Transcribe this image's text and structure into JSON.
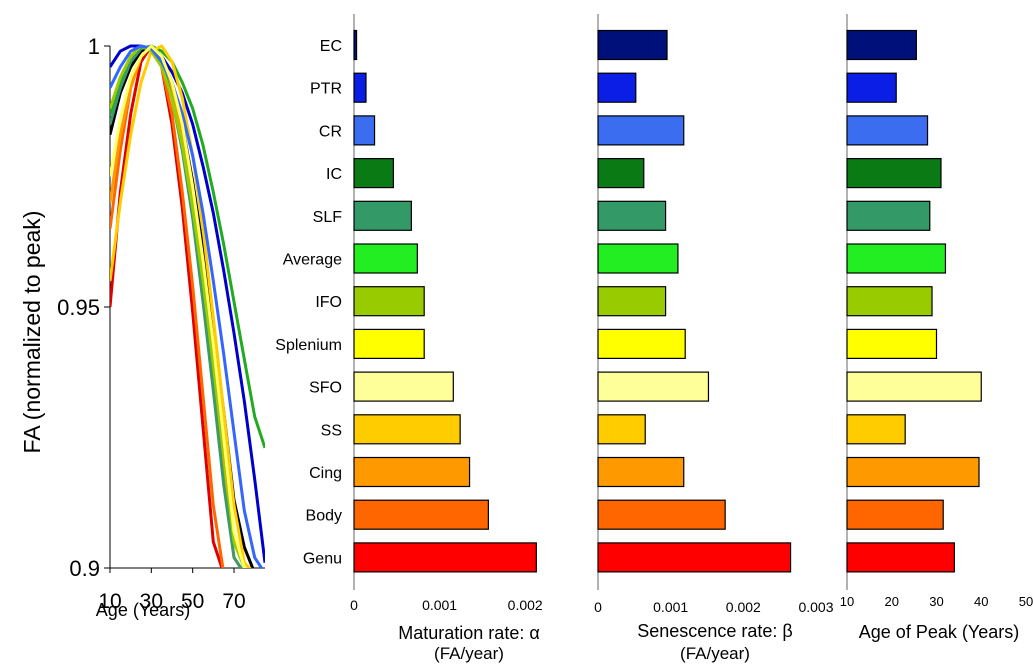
{
  "chart_data": [
    {
      "type": "line",
      "ylabel": "FA (normalized to peak)",
      "xlabel": "Age (Years)",
      "xlim": [
        10,
        85
      ],
      "ylim": [
        0.9,
        1.0
      ],
      "xticks": [
        10,
        30,
        50,
        70
      ],
      "yticks": [
        0.9,
        0.95,
        1
      ],
      "ytick_labels": [
        "0.9",
        "0.95",
        "1"
      ],
      "grid": false,
      "series": [
        {
          "color": "#0000cc",
          "x": [
            10,
            15,
            20,
            25,
            30,
            35,
            40,
            45,
            50,
            55,
            60,
            65,
            70,
            75,
            80,
            85
          ],
          "y": [
            0.996,
            0.999,
            1.0,
            1.0,
            0.9995,
            0.998,
            0.995,
            0.991,
            0.985,
            0.977,
            0.968,
            0.957,
            0.945,
            0.932,
            0.917,
            0.901
          ]
        },
        {
          "color": "#000000",
          "x": [
            10,
            15,
            20,
            25,
            30,
            35,
            40,
            45,
            50,
            55,
            60,
            65,
            70,
            75,
            80
          ],
          "y": [
            0.983,
            0.991,
            0.996,
            0.999,
            1.0,
            0.998,
            0.993,
            0.985,
            0.974,
            0.961,
            0.946,
            0.93,
            0.913,
            0.904,
            0.899
          ]
        },
        {
          "color": "#22aa22",
          "x": [
            10,
            15,
            20,
            25,
            30,
            35,
            40,
            45,
            50,
            55,
            60,
            65,
            70,
            75,
            80,
            85
          ],
          "y": [
            0.987,
            0.993,
            0.997,
            0.9995,
            1.0,
            0.999,
            0.997,
            0.993,
            0.988,
            0.981,
            0.972,
            0.962,
            0.951,
            0.94,
            0.929,
            0.923
          ]
        },
        {
          "color": "#dd0000",
          "x": [
            10,
            15,
            20,
            25,
            30,
            35,
            40,
            45,
            50,
            55,
            60,
            65,
            70
          ],
          "y": [
            0.95,
            0.972,
            0.987,
            0.997,
            1.0,
            0.996,
            0.985,
            0.969,
            0.949,
            0.927,
            0.905,
            0.899,
            0.898
          ]
        },
        {
          "color": "#ff6600",
          "x": [
            10,
            15,
            20,
            25,
            30,
            35,
            40,
            45,
            50,
            55,
            60,
            65,
            70
          ],
          "y": [
            0.965,
            0.98,
            0.992,
            0.998,
            1.0,
            0.996,
            0.987,
            0.972,
            0.954,
            0.933,
            0.912,
            0.899,
            0.898
          ]
        },
        {
          "color": "#ffcc00",
          "x": [
            10,
            15,
            20,
            25,
            30,
            35,
            40,
            45,
            50,
            55,
            60,
            65,
            70,
            75,
            80
          ],
          "y": [
            0.955,
            0.97,
            0.983,
            0.993,
            0.999,
            1.0,
            0.997,
            0.99,
            0.979,
            0.965,
            0.948,
            0.93,
            0.912,
            0.901,
            0.899
          ]
        },
        {
          "color": "#ff9900",
          "x": [
            10,
            15,
            20,
            25,
            30,
            35,
            40,
            45,
            50,
            55,
            60,
            65,
            70,
            75,
            80
          ],
          "y": [
            0.97,
            0.983,
            0.992,
            0.998,
            1.0,
            0.998,
            0.992,
            0.983,
            0.97,
            0.955,
            0.938,
            0.92,
            0.902,
            0.899,
            0.898
          ]
        },
        {
          "color": "#3a9a6a",
          "x": [
            10,
            15,
            20,
            25,
            30,
            35,
            40,
            45,
            50,
            55,
            60,
            65,
            70,
            75,
            80
          ],
          "y": [
            0.985,
            0.992,
            0.997,
            0.9995,
            1.0,
            0.997,
            0.99,
            0.98,
            0.967,
            0.951,
            0.934,
            0.916,
            0.902,
            0.899,
            0.898
          ]
        },
        {
          "color": "#99cc00",
          "x": [
            10,
            15,
            20,
            25,
            30,
            35,
            40,
            45,
            50,
            55,
            60,
            65,
            70,
            75,
            80
          ],
          "y": [
            0.988,
            0.994,
            0.998,
            1.0,
            0.999,
            0.996,
            0.99,
            0.981,
            0.969,
            0.955,
            0.939,
            0.922,
            0.905,
            0.9,
            0.899
          ]
        },
        {
          "color": "#3366ff",
          "x": [
            10,
            15,
            20,
            25,
            30,
            35,
            40,
            45,
            50,
            55,
            60,
            65,
            70,
            75,
            80,
            85
          ],
          "y": [
            0.992,
            0.996,
            0.999,
            1.0,
            0.9995,
            0.997,
            0.993,
            0.987,
            0.979,
            0.968,
            0.955,
            0.941,
            0.926,
            0.911,
            0.902,
            0.899
          ]
        },
        {
          "color": "#ffff66",
          "x": [
            10,
            15,
            20,
            25,
            30,
            35,
            40,
            45,
            50,
            55,
            60,
            65,
            70,
            75,
            80
          ],
          "y": [
            0.975,
            0.986,
            0.994,
            0.998,
            1.0,
            0.998,
            0.993,
            0.985,
            0.973,
            0.959,
            0.943,
            0.925,
            0.907,
            0.9,
            0.899
          ]
        }
      ]
    },
    {
      "type": "bar",
      "orientation": "horizontal",
      "categories": [
        "EC",
        "PTR",
        "CR",
        "IC",
        "SLF",
        "Average",
        "IFO",
        "Splenium",
        "SFO",
        "SS",
        "Cing",
        "Body",
        "Genu"
      ],
      "colors": [
        "#00107a",
        "#0a1ee6",
        "#3a6df0",
        "#0a7a14",
        "#339966",
        "#22ee22",
        "#99cc00",
        "#ffff00",
        "#ffff99",
        "#ffcc00",
        "#ff9900",
        "#ff6600",
        "#ff0000"
      ],
      "panels": [
        {
          "xlabel": "Maturation rate: α",
          "xlabel2": "(FA/year)",
          "xlim": [
            0,
            0.0025
          ],
          "xticks": [
            0,
            0.001,
            0.002
          ],
          "xtick_labels": [
            "0",
            "0.001",
            "0.002"
          ],
          "values": [
            3e-05,
            0.00014,
            0.00024,
            0.00046,
            0.00067,
            0.00074,
            0.00082,
            0.00082,
            0.00116,
            0.00124,
            0.00135,
            0.00157,
            0.00213
          ]
        },
        {
          "xlabel": "Senescence rate: β",
          "xlabel2": "(FA/year)",
          "xlim": [
            0,
            0.003
          ],
          "xticks": [
            0,
            0.001,
            0.002,
            0.003
          ],
          "xtick_labels": [
            "0",
            "0.001",
            "0.002",
            "0.003"
          ],
          "values": [
            0.00095,
            0.00052,
            0.00118,
            0.00063,
            0.00093,
            0.0011,
            0.00093,
            0.0012,
            0.00152,
            0.00065,
            0.00118,
            0.00175,
            0.00265
          ]
        },
        {
          "xlabel": "Age of Peak (Years)",
          "xlabel2": "",
          "xlim": [
            10,
            50
          ],
          "xticks": [
            10,
            20,
            30,
            40,
            50
          ],
          "xtick_labels": [
            "10",
            "20",
            "30",
            "40",
            "50"
          ],
          "values": [
            25.5,
            21,
            28,
            31,
            28.5,
            32,
            29,
            30,
            40,
            23,
            39.5,
            31.5,
            34
          ]
        }
      ]
    }
  ]
}
